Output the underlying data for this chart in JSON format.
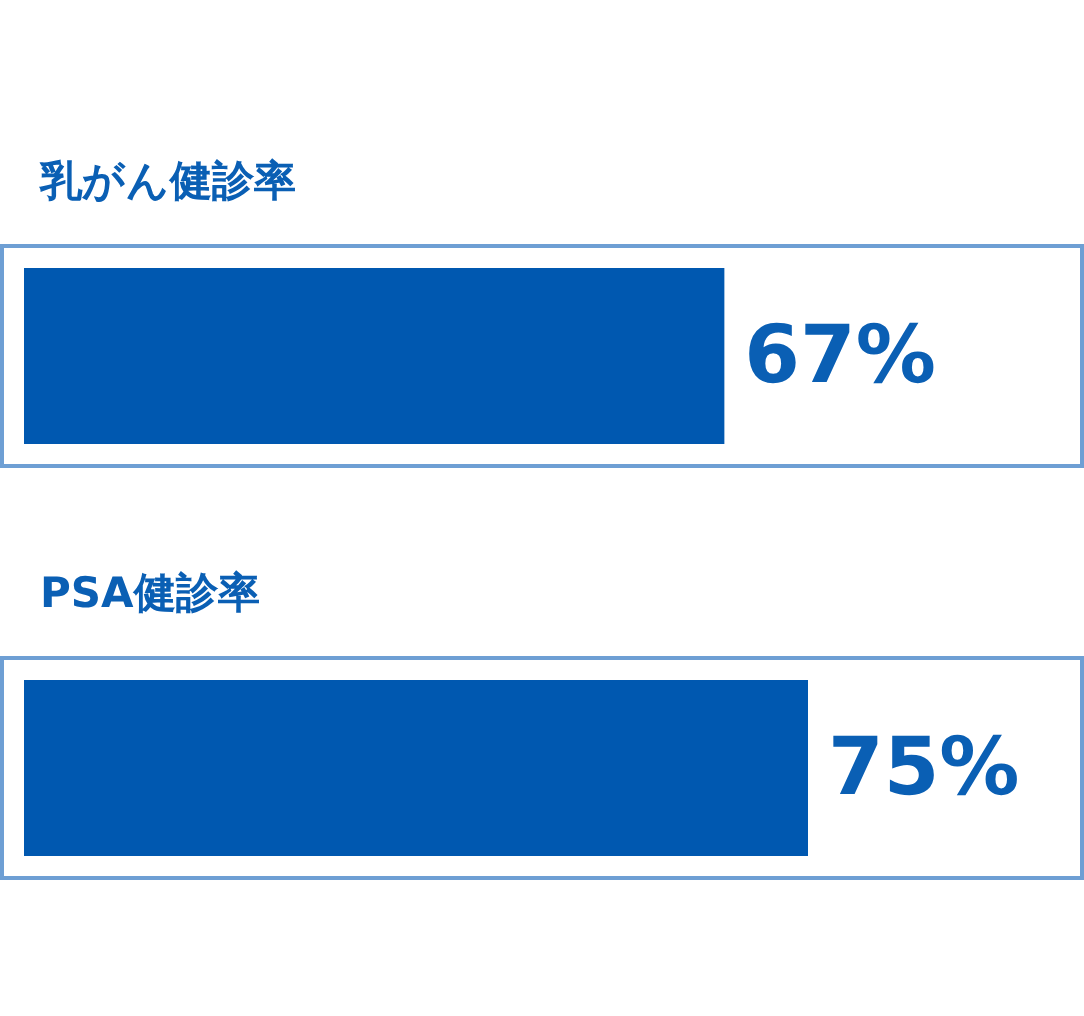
{
  "chart_data": {
    "type": "bar",
    "orientation": "horizontal",
    "categories": [
      "乳がん健診率",
      "PSA健診率"
    ],
    "values": [
      67,
      75
    ],
    "color": "#0058b0",
    "value_labels": [
      "67%",
      "75%"
    ]
  }
}
